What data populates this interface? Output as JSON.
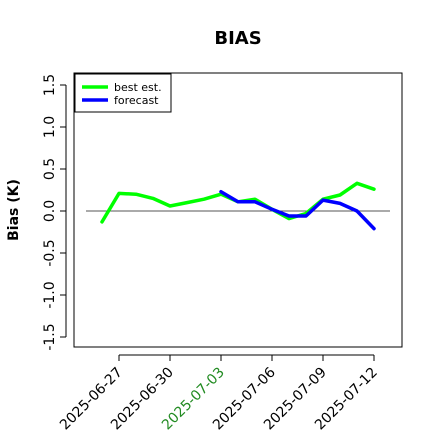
{
  "chart_data": {
    "type": "line",
    "title": "BIAS",
    "xlabel": "",
    "ylabel": "Bias (K)",
    "ylim": [
      -1.5,
      1.5
    ],
    "yticks": [
      "-1.5",
      "-1.0",
      "-0.5",
      "0.0",
      "0.5",
      "1.0",
      "1.5"
    ],
    "y_tick_values": [
      -1.5,
      -1.0,
      -0.5,
      0.0,
      0.5,
      1.0,
      1.5
    ],
    "x_tick_labels": [
      "2025-06-27",
      "2025-06-30",
      "2025-07-03",
      "2025-07-06",
      "2025-07-09",
      "2025-07-12"
    ],
    "highlighted_tick": "2025-07-03",
    "highlight_color": "#228B22",
    "reference_line_y": 0.0,
    "grid": false,
    "legend_position": "top-left",
    "series": [
      {
        "name": "best est.",
        "color": "#00ff00",
        "x": [
          "2025-06-26",
          "2025-06-27",
          "2025-06-28",
          "2025-06-29",
          "2025-06-30",
          "2025-07-01",
          "2025-07-02",
          "2025-07-03",
          "2025-07-04",
          "2025-07-05",
          "2025-07-06",
          "2025-07-07",
          "2025-07-08",
          "2025-07-09",
          "2025-07-10",
          "2025-07-11",
          "2025-07-12"
        ],
        "values": [
          -0.13,
          0.21,
          0.2,
          0.15,
          0.06,
          0.1,
          0.14,
          0.2,
          0.11,
          0.14,
          0.02,
          -0.09,
          -0.03,
          0.14,
          0.19,
          0.33,
          0.26
        ]
      },
      {
        "name": "forecast",
        "color": "#0000ff",
        "x": [
          "2025-07-03",
          "2025-07-04",
          "2025-07-05",
          "2025-07-06",
          "2025-07-07",
          "2025-07-08",
          "2025-07-09",
          "2025-07-10",
          "2025-07-11",
          "2025-07-12"
        ],
        "values": [
          0.23,
          0.11,
          0.11,
          0.02,
          -0.06,
          -0.06,
          0.13,
          0.09,
          0.0,
          -0.21
        ]
      }
    ]
  }
}
